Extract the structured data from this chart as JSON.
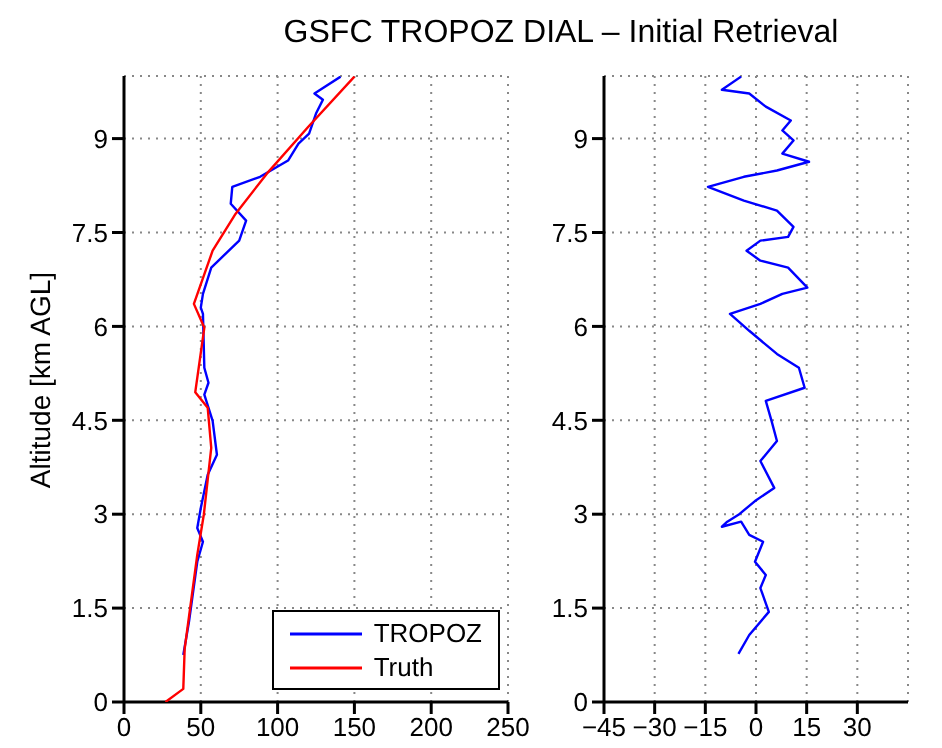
{
  "chart_data": [
    {
      "type": "line",
      "title": "GSFC TROPOZ DIAL – Initial Retrieval",
      "ylabel": "Altitude [km AGL]",
      "xlim": [
        0,
        250
      ],
      "xticks": [
        0,
        50,
        100,
        150,
        200,
        250
      ],
      "ylim": [
        0,
        10
      ],
      "yticks": [
        0,
        1.5,
        3,
        4.5,
        6,
        7.5,
        9
      ],
      "grid": true,
      "legend": "bottom right",
      "marker": "none",
      "line_style": "solid",
      "series": [
        {
          "name": "TROPOZ",
          "color": "#0000ff",
          "x": [
            38.6,
            42.3,
            47.7,
            51.4,
            47.7,
            50,
            54.5,
            60.5,
            57.7,
            52.3,
            55,
            52.3,
            51.4,
            50,
            51.4,
            56.8,
            75,
            79.5,
            69.5,
            70.5,
            88.6,
            106.8,
            113.6,
            120.5,
            125,
            129.5,
            124,
            141
          ],
          "values": [
            0.75,
            1.28,
            2.24,
            2.56,
            2.78,
            3.1,
            3.63,
            3.95,
            4.49,
            4.91,
            5.1,
            5.34,
            6.2,
            6.3,
            6.52,
            6.94,
            7.37,
            7.69,
            7.96,
            8.23,
            8.39,
            8.65,
            8.92,
            9.08,
            9.4,
            9.62,
            9.72,
            9.99
          ]
        },
        {
          "name": "Truth",
          "color": "#ff0000",
          "x": [
            27,
            38.6,
            39.5,
            47.7,
            52,
            56.8,
            54.5,
            46.4,
            52.3,
            45.5,
            57.7,
            72.7,
            93,
            120,
            150
          ],
          "values": [
            0,
            0.21,
            0.85,
            2.35,
            3.0,
            4.06,
            4.7,
            4.95,
            5.98,
            6.36,
            7.21,
            7.8,
            8.44,
            9.19,
            9.99
          ]
        }
      ]
    },
    {
      "type": "line",
      "xlim": [
        -45,
        45
      ],
      "xticks": [
        -45,
        -30,
        -15,
        0,
        15,
        30
      ],
      "ylim": [
        0,
        10
      ],
      "yticks": [
        0,
        1.5,
        3,
        4.5,
        6,
        7.5,
        9
      ],
      "grid": true,
      "marker": "none",
      "line_style": "solid",
      "series": [
        {
          "color": "#0000ff",
          "x": [
            -5.2,
            -2,
            3.8,
            1.3,
            2.9,
            -0.3,
            2.1,
            -2,
            -4.4,
            -10.1,
            -8.5,
            -5.2,
            -0.3,
            5.4,
            1.3,
            6.2,
            4.6,
            2.9,
            14.4,
            12.7,
            6.2,
            -2,
            -7.7,
            1.3,
            7.8,
            15.2,
            9.5,
            1.3,
            -2.8,
            1.3,
            9.5,
            11.1,
            6.2,
            -3.6,
            -14.2,
            -3.6,
            6.2,
            15.7,
            7.8,
            11.1,
            7.8,
            10.3,
            2.9,
            -2,
            -10.1,
            -4.4
          ],
          "values": [
            0.77,
            1.07,
            1.44,
            1.82,
            2.03,
            2.24,
            2.56,
            2.67,
            2.88,
            2.8,
            2.88,
            2.99,
            3.21,
            3.42,
            3.85,
            4.17,
            4.49,
            4.81,
            5.02,
            5.34,
            5.56,
            5.93,
            6.2,
            6.36,
            6.52,
            6.62,
            6.94,
            7.05,
            7.21,
            7.37,
            7.43,
            7.59,
            7.85,
            8.01,
            8.23,
            8.39,
            8.49,
            8.63,
            8.76,
            8.97,
            9.13,
            9.29,
            9.51,
            9.72,
            9.78,
            9.99
          ]
        }
      ]
    }
  ]
}
